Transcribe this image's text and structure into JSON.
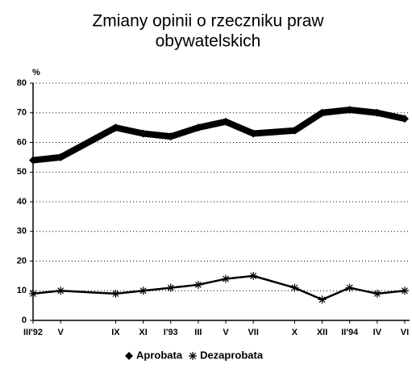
{
  "chart_data": {
    "type": "line",
    "title": [
      "Zmiany opinii o rzeczniku praw",
      "obywatelskich"
    ],
    "y_label": "%",
    "x": [
      0,
      2,
      6,
      8,
      10,
      12,
      14,
      16,
      19,
      21,
      23,
      25,
      27
    ],
    "xlim": [
      0,
      27
    ],
    "xticks": [
      {
        "value": 0,
        "label": "III'92"
      },
      {
        "value": 2,
        "label": "V"
      },
      {
        "value": 6,
        "label": "IX"
      },
      {
        "value": 8,
        "label": "XI"
      },
      {
        "value": 10,
        "label": "I'93"
      },
      {
        "value": 12,
        "label": "III"
      },
      {
        "value": 14,
        "label": "V"
      },
      {
        "value": 16,
        "label": "VII"
      },
      {
        "value": 19,
        "label": "X"
      },
      {
        "value": 21,
        "label": "XII"
      },
      {
        "value": 23,
        "label": "II'94"
      },
      {
        "value": 25,
        "label": "IV"
      },
      {
        "value": 27,
        "label": "VI"
      }
    ],
    "ylim": [
      0,
      80
    ],
    "yticks": [
      0,
      10,
      20,
      30,
      40,
      50,
      60,
      70,
      80
    ],
    "grid": true,
    "legend": "bottom",
    "series": [
      {
        "name": "Aprobata",
        "color": "#000000",
        "marker": "diamond",
        "values": [
          54,
          55,
          65,
          63,
          62,
          65,
          67,
          63,
          64,
          70,
          71,
          70,
          68
        ]
      },
      {
        "name": "Dezaprobata",
        "color": "#000000",
        "marker": "asterisk",
        "values": [
          9,
          10,
          9,
          10,
          11,
          12,
          14,
          15,
          11,
          7,
          11,
          9,
          10
        ]
      }
    ]
  }
}
